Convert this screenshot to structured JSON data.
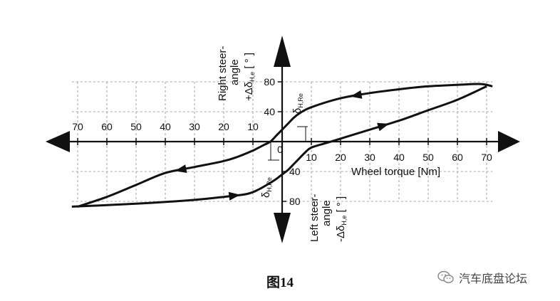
{
  "chart_data": {
    "type": "line",
    "x_ticks": [
      "70",
      "60",
      "50",
      "40",
      "30",
      "20",
      "10",
      "0",
      "10",
      "20",
      "30",
      "40",
      "50",
      "60",
      "70"
    ],
    "y_ticks_up": [
      "80",
      "40"
    ],
    "y_ticks_down": [
      "40",
      "80"
    ],
    "x_axis_label": "Wheel torque [Nm]",
    "y_upper_label": [
      "Right steer-",
      "angle",
      "+Δδ",
      "H,e",
      " [ ° ]"
    ],
    "y_lower_label": [
      "Left steer-",
      "angle",
      "-Δδ",
      "H,e",
      " [ ° ]"
    ],
    "annot_upper": [
      "δ",
      "H,Re"
    ],
    "annot_lower": [
      "δ",
      "H,Re"
    ],
    "grid": true,
    "series": [
      {
        "direction": "torque-increasing",
        "x": [
          -72,
          -60,
          -45,
          -30,
          -20,
          -12,
          -8,
          -4,
          -2,
          0,
          2,
          4,
          6,
          8,
          10,
          15,
          20,
          30,
          40,
          50,
          60,
          70
        ],
        "y": [
          -87,
          -85,
          -82,
          -78,
          -74,
          -70,
          -64,
          -55,
          -50,
          -44,
          -38,
          -30,
          -22,
          -14,
          -8,
          -2,
          4,
          16,
          28,
          42,
          56,
          74
        ]
      },
      {
        "direction": "torque-decreasing",
        "x": [
          72,
          68,
          60,
          50,
          40,
          30,
          20,
          10,
          6,
          4,
          2,
          0,
          -2,
          -4,
          -6,
          -8,
          -10,
          -15,
          -20,
          -30,
          -40,
          -50,
          -60,
          -70
        ],
        "y": [
          74,
          77,
          76,
          74,
          70,
          65,
          58,
          46,
          38,
          32,
          24,
          16,
          8,
          0,
          -4,
          -8,
          -12,
          -20,
          -26,
          -34,
          -42,
          -58,
          -74,
          -87
        ]
      }
    ],
    "caption": "图14"
  },
  "watermark": "汽车底盘论坛"
}
